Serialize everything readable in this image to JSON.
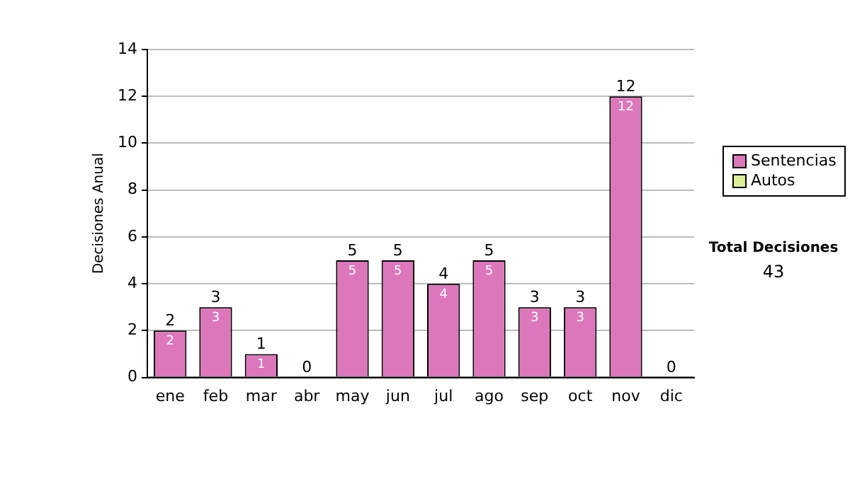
{
  "chart_data": {
    "type": "bar",
    "stacked": true,
    "ylabel": "Decisiones Anual",
    "categories": [
      "ene",
      "feb",
      "mar",
      "abr",
      "may",
      "jun",
      "jul",
      "ago",
      "sep",
      "oct",
      "nov",
      "dic"
    ],
    "series": [
      {
        "name": "Sentencias",
        "color": "#dd77bb",
        "values": [
          2,
          3,
          1,
          0,
          5,
          5,
          4,
          5,
          3,
          3,
          12,
          0
        ],
        "value_labels": [
          "2",
          "3",
          "1",
          null,
          "5",
          "5",
          "4",
          "5",
          "3",
          "3",
          "12",
          null
        ]
      },
      {
        "name": "Autos",
        "color": "#ddee99",
        "values": [
          0,
          0,
          0,
          0,
          0,
          0,
          0,
          0,
          0,
          0,
          0,
          0
        ]
      }
    ],
    "totals": [
      "2",
      "3",
      "1",
      "0",
      "5",
      "5",
      "4",
      "5",
      "3",
      "3",
      "12",
      "0"
    ],
    "ylim": [
      0,
      14
    ],
    "yticks": [
      0,
      2,
      4,
      6,
      8,
      10,
      12,
      14
    ],
    "grid": "y",
    "legend": "right",
    "annotations": [
      "Total Decisiones",
      "43"
    ]
  }
}
